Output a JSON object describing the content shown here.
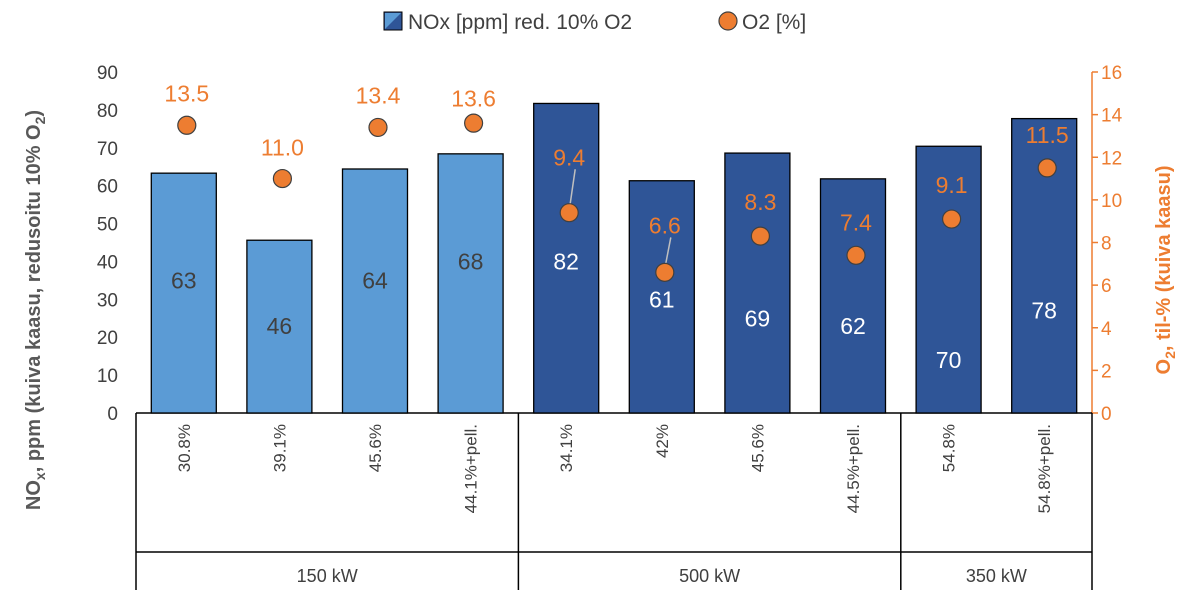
{
  "chart_data": {
    "type": "bar",
    "legend_position": "top",
    "grid": false,
    "legend": {
      "nox": "NOx [ppm] red. 10% O2",
      "o2": "O2 [%]"
    },
    "y_left": {
      "label_main": "NO",
      "label_sub": "x",
      "label_rest": ", ppm (kuiva kaasu, redusoitu 10% O",
      "label_sub2": "2",
      "label_end": ")",
      "range": [
        0,
        90
      ],
      "ticks": [
        "0",
        "10",
        "20",
        "30",
        "40",
        "50",
        "60",
        "70",
        "80",
        "90"
      ],
      "tick_values": [
        0,
        10,
        20,
        30,
        40,
        50,
        60,
        70,
        80,
        90
      ]
    },
    "y_right": {
      "label_main": "O",
      "label_sub": "2",
      "label_rest": ", til-% (kuiva kaasu)",
      "range": [
        0,
        16
      ],
      "ticks": [
        "0",
        "2",
        "4",
        "6",
        "8",
        "10",
        "12",
        "14",
        "16"
      ],
      "tick_values": [
        0,
        2,
        4,
        6,
        8,
        10,
        12,
        14,
        16
      ],
      "color": "#ED7D31"
    },
    "categories": [
      "30.8%",
      "39.1%",
      "45.6%",
      "44.1%+pell.",
      "34.1%",
      "42%",
      "45.6%",
      "44.5%+pell.",
      "54.8%",
      "54.8%+pell."
    ],
    "groups": [
      {
        "label": "150 kW",
        "count": 4
      },
      {
        "label": "500 kW",
        "count": 4
      },
      {
        "label": "350 kW",
        "count": 2
      }
    ],
    "series": [
      {
        "name": "NOx [ppm] red. 10% O2",
        "axis": "left",
        "kind": "bar",
        "values": [
          63.3,
          45.6,
          64.4,
          68.4,
          81.7,
          61.3,
          68.6,
          61.8,
          70.4,
          77.7
        ],
        "labels": [
          "63",
          "46",
          "64",
          "68",
          "82",
          "61",
          "69",
          "62",
          "70",
          "78"
        ],
        "label_values": [
          35,
          23,
          35,
          40,
          40,
          30,
          25,
          23,
          14,
          27
        ],
        "bar_colors": [
          "#5B9BD5",
          "#5B9BD5",
          "#5B9BD5",
          "#5B9BD5",
          "#2F5597",
          "#2F5597",
          "#2F5597",
          "#2F5597",
          "#2F5597",
          "#2F5597"
        ],
        "label_colors": [
          "#404040",
          "#404040",
          "#404040",
          "#404040",
          "#ffffff",
          "#ffffff",
          "#ffffff",
          "#ffffff",
          "#ffffff",
          "#ffffff"
        ]
      },
      {
        "name": "O2 [%]",
        "axis": "right",
        "kind": "scatter",
        "color": "#ED7D31",
        "values": [
          13.5,
          11.0,
          13.4,
          13.6,
          9.4,
          6.6,
          8.3,
          7.4,
          9.1,
          11.5
        ],
        "labels": [
          "13.5",
          "11.0",
          "13.4",
          "13.6",
          "9.4",
          "6.6",
          "8.3",
          "7.4",
          "9.1",
          "11.5"
        ],
        "label_values": [
          15.0,
          12.45,
          14.9,
          14.75,
          12.0,
          8.8,
          9.9,
          8.95,
          10.7,
          13.05
        ],
        "leader_lines": [
          false,
          false,
          false,
          false,
          true,
          true,
          false,
          false,
          false,
          false
        ]
      }
    ]
  }
}
